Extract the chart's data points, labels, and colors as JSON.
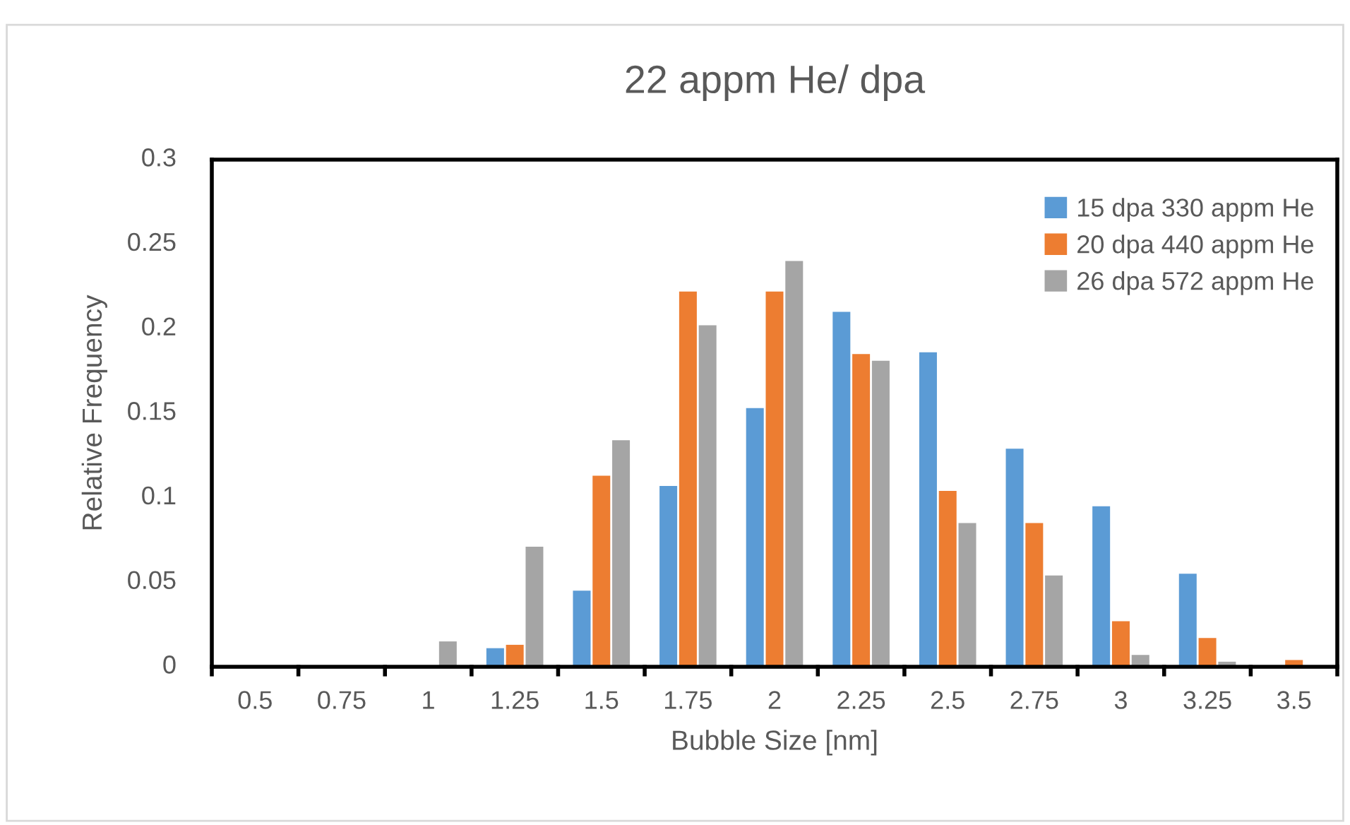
{
  "chart_data": {
    "type": "bar",
    "title": "22 appm He/ dpa",
    "xlabel": "Bubble Size [nm]",
    "ylabel": "Relative Frequency",
    "categories": [
      "0.5",
      "0.75",
      "1",
      "1.25",
      "1.5",
      "1.75",
      "2",
      "2.25",
      "2.5",
      "2.75",
      "3",
      "3.25",
      "3.5"
    ],
    "series": [
      {
        "name": "15 dpa 330 appm He",
        "color": "#5b9bd5",
        "values": [
          0,
          0,
          0,
          0.011,
          0.045,
          0.107,
          0.153,
          0.21,
          0.186,
          0.129,
          0.095,
          0.055,
          0
        ]
      },
      {
        "name": "20 dpa 440 appm He",
        "color": "#ed7d31",
        "values": [
          0,
          0,
          0,
          0.013,
          0.113,
          0.222,
          0.222,
          0.185,
          0.104,
          0.085,
          0.027,
          0.017,
          0.004
        ]
      },
      {
        "name": "26 dpa 572 appm He",
        "color": "#a5a5a5",
        "values": [
          0,
          0,
          0.015,
          0.071,
          0.134,
          0.202,
          0.24,
          0.181,
          0.085,
          0.054,
          0.007,
          0.003,
          0
        ]
      }
    ],
    "ylim": [
      0,
      0.3
    ],
    "yticks": [
      0,
      0.05,
      0.1,
      0.15,
      0.2,
      0.25,
      0.3
    ],
    "grid": false,
    "legend": "top right"
  }
}
